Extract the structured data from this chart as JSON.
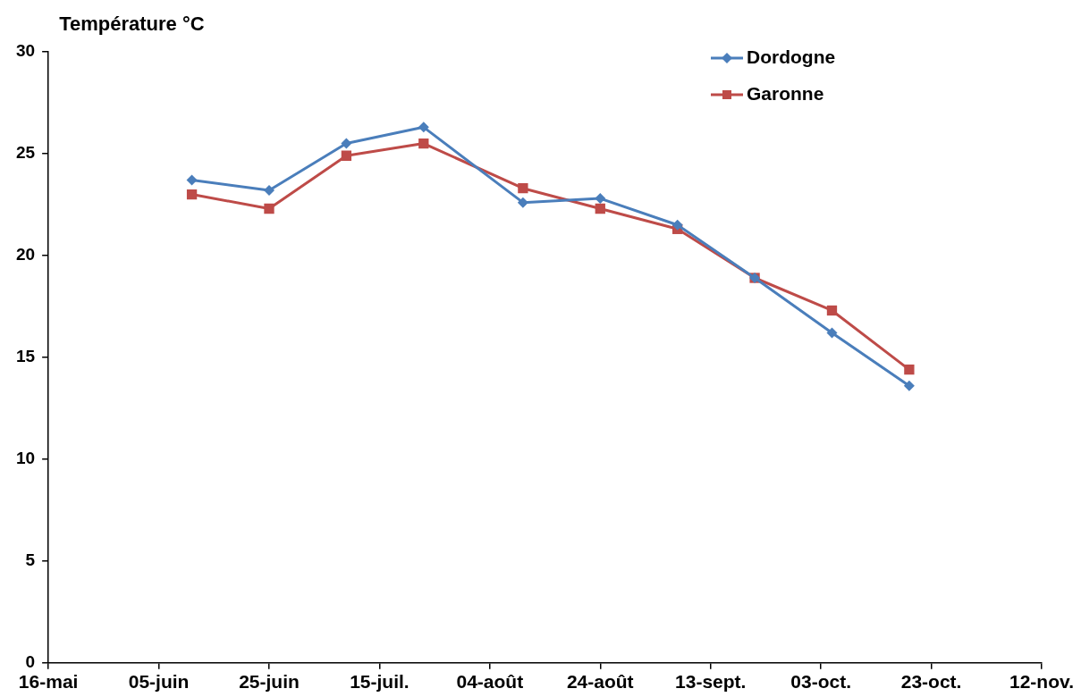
{
  "chart_data": {
    "type": "line",
    "ylabel": "Température °C",
    "xlim": [
      "--05-16",
      "--11-12"
    ],
    "xticks": [
      {
        "value": "--05-16",
        "label": "16-mai"
      },
      {
        "value": "--06-05",
        "label": "05-juin"
      },
      {
        "value": "--06-25",
        "label": "25-juin"
      },
      {
        "value": "--07-15",
        "label": "15-juil."
      },
      {
        "value": "--08-04",
        "label": "04-août"
      },
      {
        "value": "--08-24",
        "label": "24-août"
      },
      {
        "value": "--09-13",
        "label": "13-sept."
      },
      {
        "value": "--10-03",
        "label": "03-oct."
      },
      {
        "value": "--10-23",
        "label": "23-oct."
      },
      {
        "value": "--11-12",
        "label": "12-nov."
      }
    ],
    "ylim": [
      0,
      30
    ],
    "yticks": [
      0,
      5,
      10,
      15,
      20,
      25,
      30
    ],
    "grid": false,
    "legend": "top right",
    "line_style": "solid",
    "x": [
      "--06-11",
      "--06-25",
      "--07-09",
      "--07-23",
      "--08-10",
      "--08-24",
      "--09-07",
      "--09-21",
      "--10-05",
      "--10-19"
    ],
    "series": [
      {
        "name": "Dordogne",
        "color": "#4a7ebb",
        "marker": "diamond",
        "values": [
          23.7,
          23.2,
          25.5,
          26.3,
          22.6,
          22.8,
          21.5,
          18.9,
          16.2,
          13.6
        ]
      },
      {
        "name": "Garonne",
        "color": "#be4b48",
        "marker": "square",
        "values": [
          23.0,
          22.3,
          24.9,
          25.5,
          23.3,
          22.3,
          21.3,
          18.9,
          17.3,
          14.4
        ]
      }
    ]
  }
}
